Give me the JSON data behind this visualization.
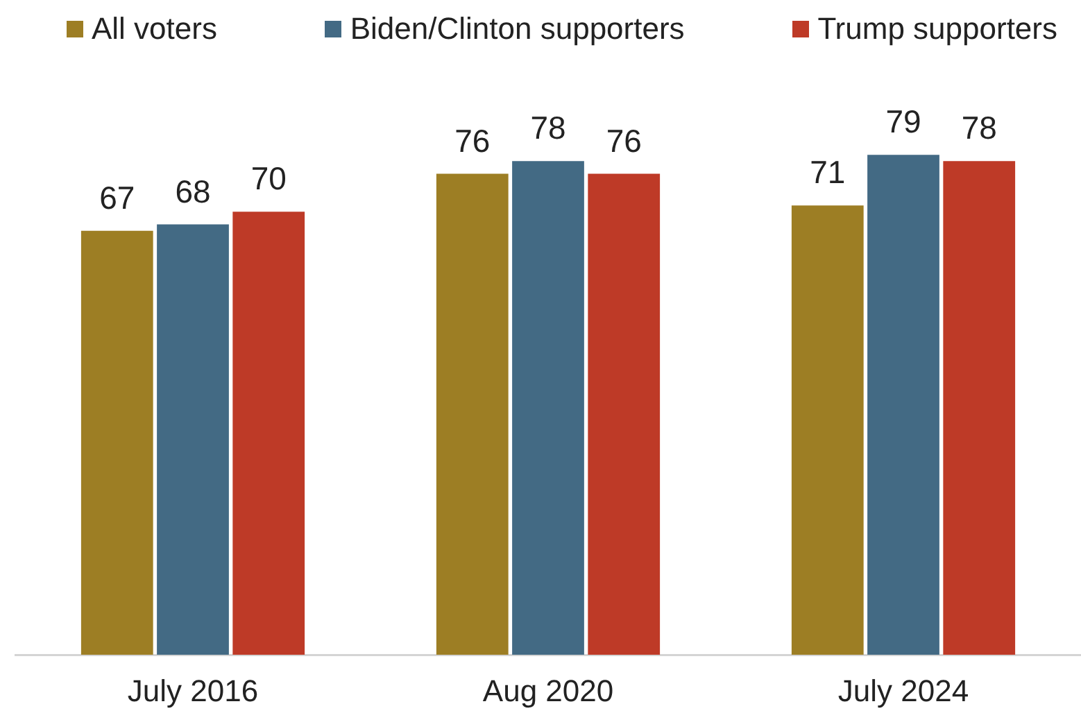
{
  "chart_data": {
    "type": "bar",
    "categories": [
      "July 2016",
      "Aug 2020",
      "July 2024"
    ],
    "series": [
      {
        "name": "All voters",
        "color": "#9d7e24",
        "values": [
          67,
          76,
          71
        ]
      },
      {
        "name": "Biden/Clinton supporters",
        "color": "#436a84",
        "values": [
          68,
          78,
          79
        ]
      },
      {
        "name": "Trump supporters",
        "color": "#be3a27",
        "values": [
          70,
          76,
          78
        ]
      }
    ],
    "data_labels": true,
    "legend": "top",
    "tick_labels": "x"
  }
}
